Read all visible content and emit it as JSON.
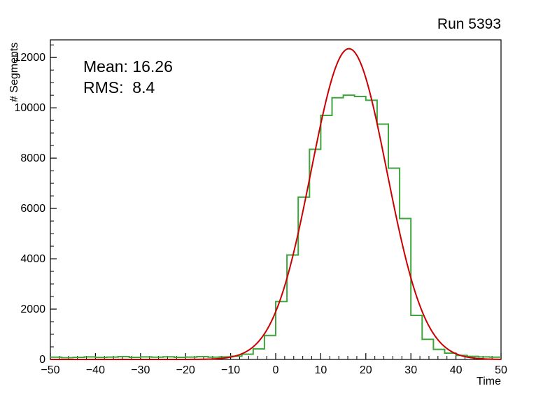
{
  "title": "Run 5393",
  "stats": {
    "mean": "Mean: 16.26",
    "rms": "RMS:  8.4"
  },
  "chart_data": {
    "type": "bar",
    "subtype": "step-histogram-with-gaussian-fit",
    "title": "Run 5393",
    "xlabel": "Time",
    "ylabel": "# Segments",
    "xlim": [
      -50,
      50
    ],
    "ylim": [
      0,
      12700
    ],
    "grid": false,
    "x_ticks": {
      "values": [
        -50,
        -40,
        -30,
        -20,
        -10,
        0,
        10,
        20,
        30,
        40,
        50
      ],
      "labels": [
        "−50",
        "−40",
        "−30",
        "−20",
        "−10",
        "0",
        "10",
        "20",
        "30",
        "40",
        "50"
      ],
      "minor_step": 2
    },
    "y_ticks": {
      "values": [
        0,
        2000,
        4000,
        6000,
        8000,
        10000,
        12000
      ],
      "labels": [
        "0",
        "2000",
        "4000",
        "6000",
        "8000",
        "10000",
        "12000"
      ],
      "minor_step": 500
    },
    "histogram": {
      "bin_start": -50,
      "bin_width": 2.5,
      "counts": [
        90,
        70,
        85,
        100,
        80,
        95,
        110,
        85,
        100,
        90,
        105,
        85,
        95,
        110,
        90,
        100,
        130,
        210,
        420,
        950,
        2300,
        4150,
        6450,
        8350,
        9700,
        10400,
        10500,
        10450,
        10300,
        9350,
        7600,
        5600,
        1750,
        800,
        400,
        250,
        160,
        120,
        100,
        90
      ]
    },
    "fit": {
      "type": "gaussian",
      "amplitude": 12350,
      "mean": 16.26,
      "sigma": 8.4
    },
    "colors": {
      "histogram": "#3ca53c",
      "fit": "#cc0000",
      "axis": "#000000",
      "background": "#ffffff"
    }
  }
}
